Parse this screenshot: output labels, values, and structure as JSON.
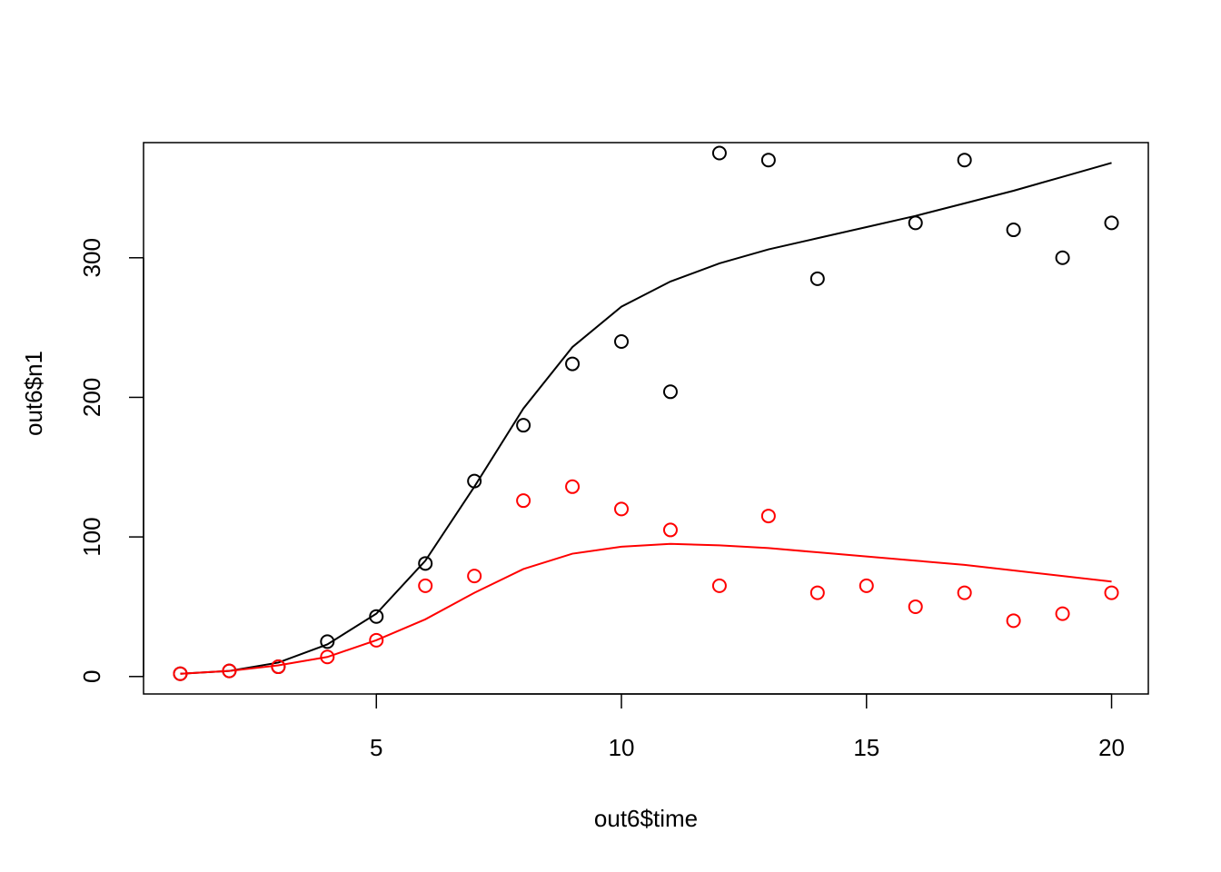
{
  "chart_data": {
    "type": "scatter",
    "title": "",
    "xlabel": "out6$time",
    "ylabel": "out6$n1",
    "xlim": [
      0.25,
      20.75
    ],
    "ylim": [
      -12.5,
      382.5
    ],
    "xticks": [
      5,
      10,
      15,
      20
    ],
    "yticks": [
      0,
      100,
      200,
      300
    ],
    "grid": false,
    "legend": "none",
    "series": [
      {
        "kind": "points",
        "color": "#000000",
        "x": [
          1,
          2,
          3,
          4,
          5,
          6,
          7,
          8,
          9,
          10,
          11,
          12,
          13,
          14,
          15,
          16,
          17,
          18,
          19,
          20
        ],
        "values": [
          2,
          4,
          7,
          25,
          43,
          81,
          140,
          180,
          224,
          240,
          204,
          375,
          370,
          285,
          null,
          325,
          370,
          320,
          300,
          325
        ]
      },
      {
        "kind": "line",
        "color": "#000000",
        "x": [
          1,
          2,
          3,
          4,
          5,
          6,
          7,
          8,
          9,
          10,
          11,
          12,
          13,
          14,
          15,
          16,
          17,
          18,
          19,
          20
        ],
        "values": [
          2,
          4,
          10,
          23,
          45,
          83,
          136,
          192,
          236,
          265,
          283,
          296,
          306,
          314,
          322,
          330,
          339,
          348,
          358,
          368
        ]
      },
      {
        "kind": "points",
        "color": "#ff0000",
        "x": [
          1,
          2,
          3,
          4,
          5,
          6,
          7,
          8,
          9,
          10,
          11,
          12,
          13,
          14,
          15,
          16,
          17,
          18,
          19,
          20
        ],
        "values": [
          2,
          4,
          7,
          14,
          26,
          65,
          72,
          126,
          136,
          120,
          105,
          65,
          115,
          60,
          65,
          50,
          60,
          40,
          45,
          60
        ]
      },
      {
        "kind": "line",
        "color": "#ff0000",
        "x": [
          1,
          2,
          3,
          4,
          5,
          6,
          7,
          8,
          9,
          10,
          11,
          12,
          13,
          14,
          15,
          16,
          17,
          18,
          19,
          20
        ],
        "values": [
          2,
          4,
          8,
          14,
          26,
          41,
          60,
          77,
          88,
          93,
          95,
          94,
          92,
          89,
          86,
          83,
          80,
          76,
          72,
          68
        ]
      }
    ]
  }
}
